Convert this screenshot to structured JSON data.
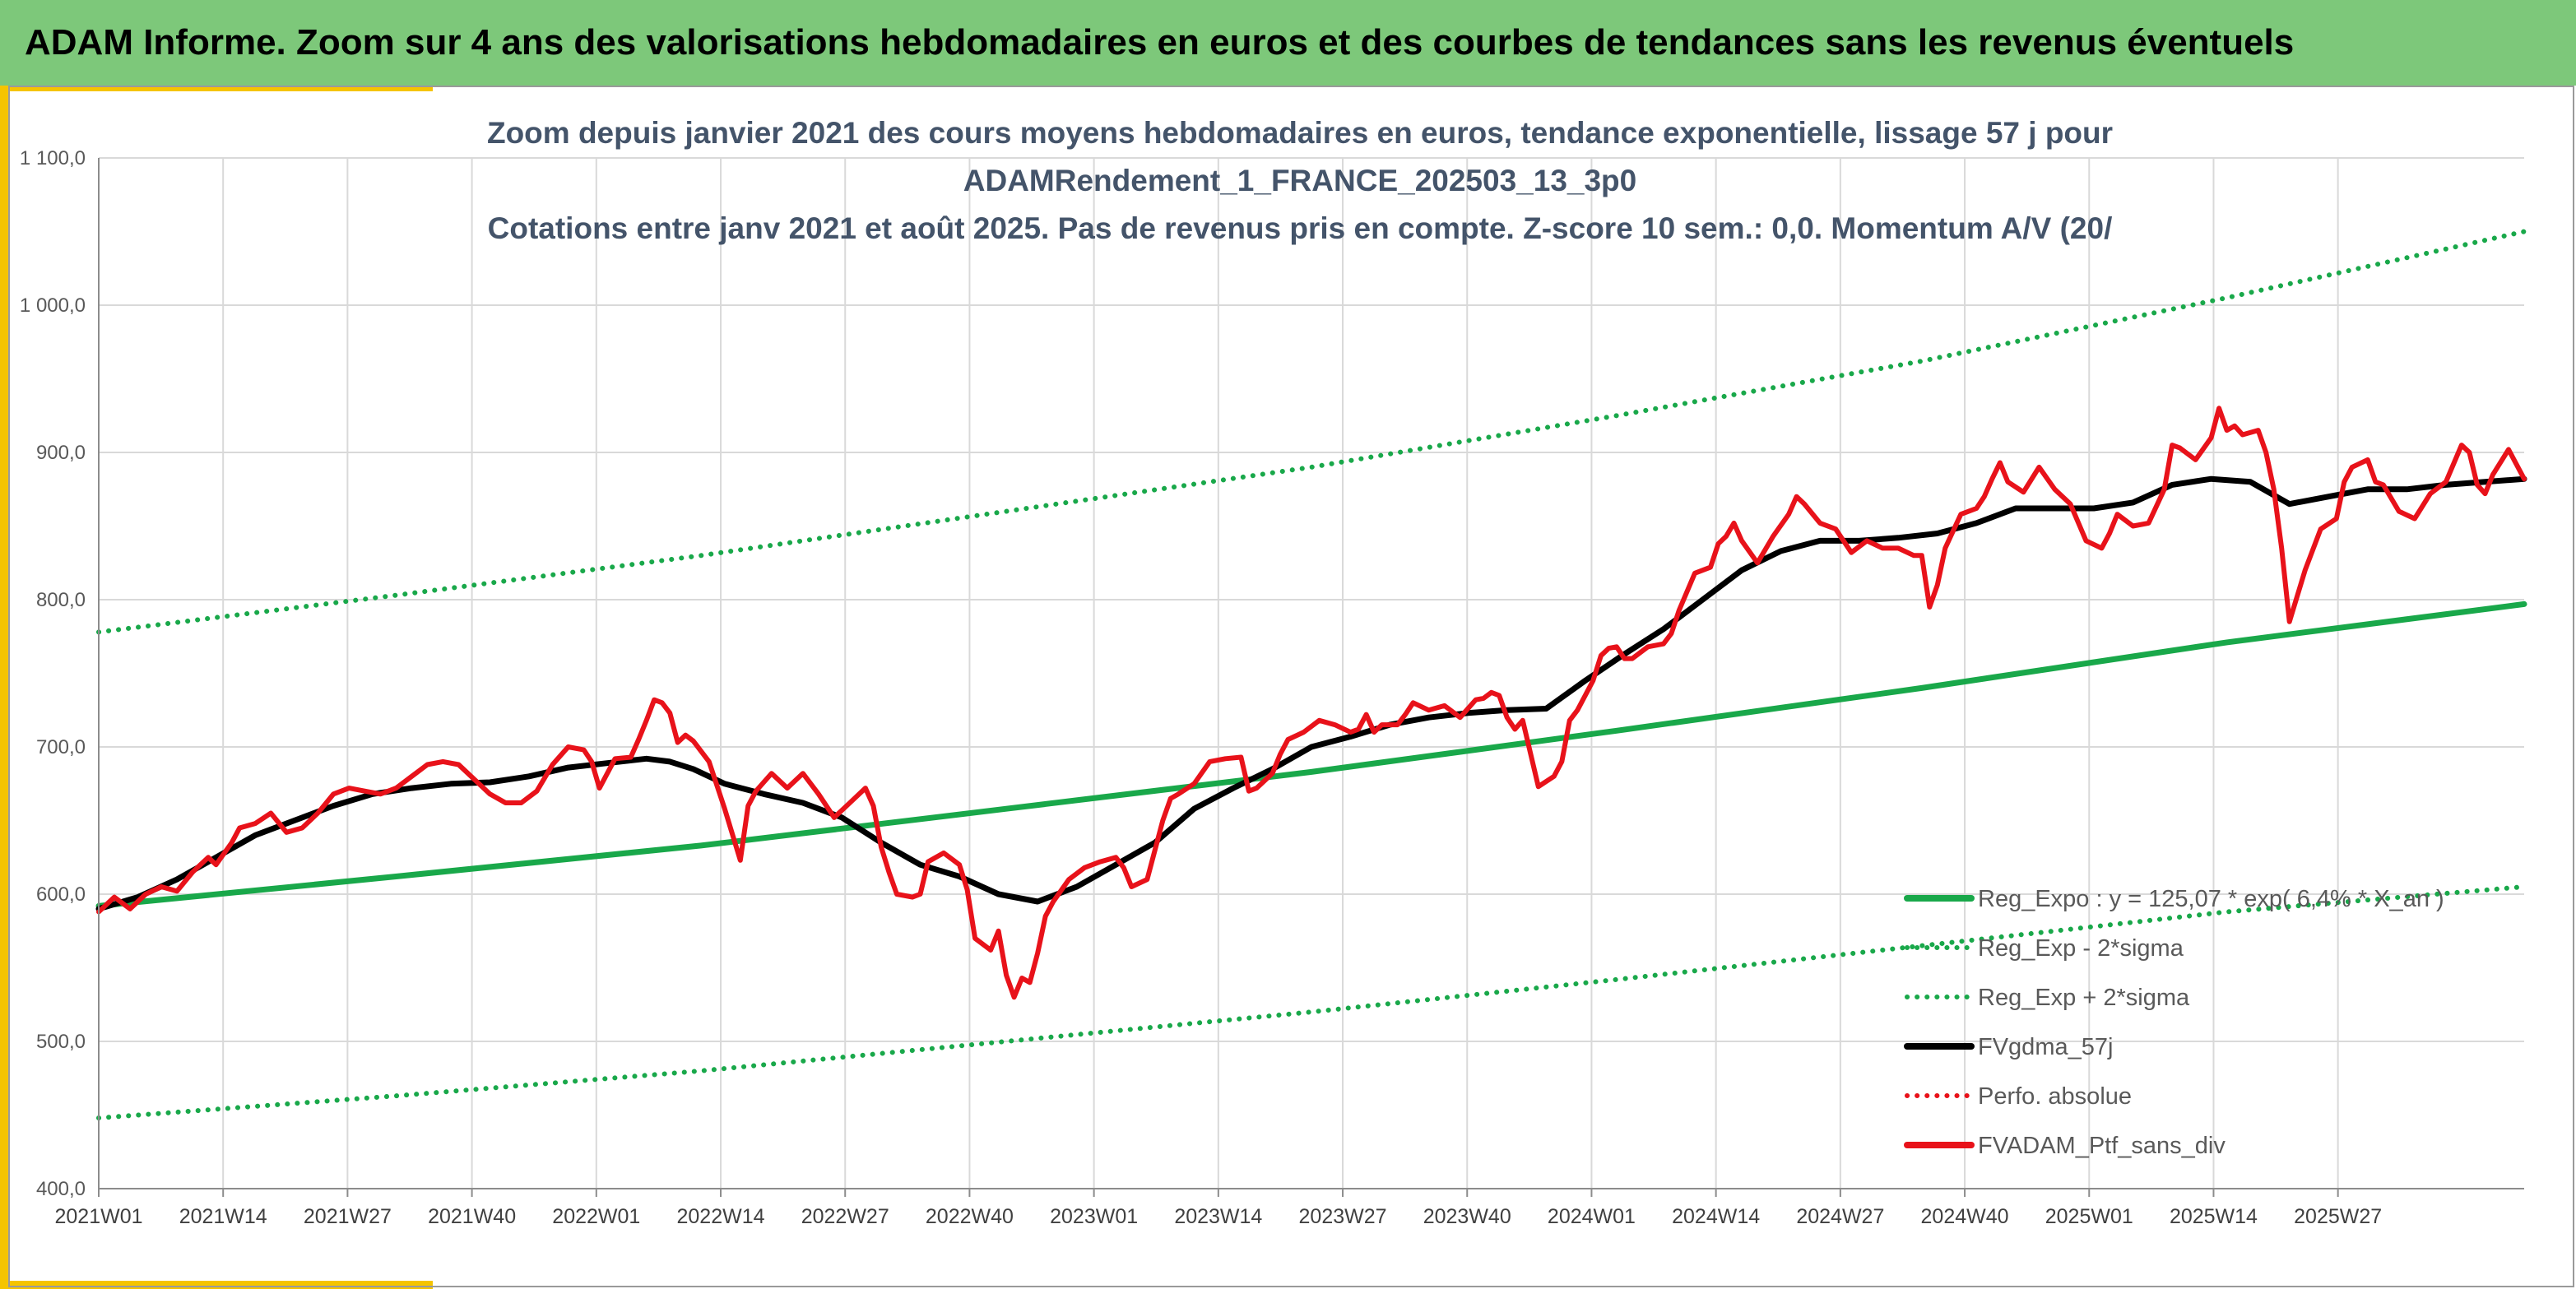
{
  "banner": {
    "title": "ADAM Informe. Zoom sur 4 ans des valorisations hebdomadaires en euros et des courbes de tendances sans les revenus éventuels",
    "color": "#7dc87a"
  },
  "chart_data": {
    "type": "line",
    "title_lines": [
      "Zoom depuis janvier 2021 des cours moyens hebdomadaires en euros, tendance exponentielle, lissage 57 j pour",
      "ADAMRendement_1_FRANCE_202503_13_3p0",
      "Cotations entre janv 2021 et août 2025. Pas de revenus pris en compte. Z-score 10 sem.: 0,0. Momentum A/V (20/"
    ],
    "xlabel": "",
    "ylabel": "",
    "ylim": [
      400,
      1100
    ],
    "yticks": [
      400,
      500,
      600,
      700,
      800,
      900,
      1000,
      1100
    ],
    "ytick_labels": [
      "400,0",
      "500,0",
      "600,0",
      "700,0",
      "800,0",
      "900,0",
      "1 000,0",
      "1 100,0"
    ],
    "xticks": [
      "2021W01",
      "2021W14",
      "2021W27",
      "2021W40",
      "2022W01",
      "2022W14",
      "2022W27",
      "2022W40",
      "2023W01",
      "2023W14",
      "2023W27",
      "2023W40",
      "2024W01",
      "2024W14",
      "2024W27",
      "2024W40",
      "2025W01",
      "2025W14",
      "2025W27"
    ],
    "grid": "horizontal and vertical",
    "legend_position": "bottom-right",
    "legend": [
      {
        "label": "Reg_Expo : y = 125,07 * exp( 6,4% * X_an )",
        "color": "#19a84a",
        "style": "solid"
      },
      {
        "label": "Reg_Exp - 2*sigma",
        "color": "#19a84a",
        "style": "dotted"
      },
      {
        "label": "Reg_Exp + 2*sigma",
        "color": "#19a84a",
        "style": "dotted"
      },
      {
        "label": "FVgdma_57j",
        "color": "#000000",
        "style": "solid"
      },
      {
        "label": "Perfo. absolue",
        "color": "#e8121a",
        "style": "dotted"
      },
      {
        "label": "FVADAM_Ptf_sans_div",
        "color": "#e8121a",
        "style": "solid"
      }
    ],
    "series": [
      {
        "name": "FVADAM_Ptf_sans_div",
        "color": "#e8121a",
        "points": [
          [
            0,
            588
          ],
          [
            2,
            598
          ],
          [
            4,
            590
          ],
          [
            6,
            600
          ],
          [
            8,
            605
          ],
          [
            10,
            602
          ],
          [
            12,
            615
          ],
          [
            14,
            625
          ],
          [
            15,
            620
          ],
          [
            17,
            635
          ],
          [
            18,
            645
          ],
          [
            20,
            648
          ],
          [
            22,
            655
          ],
          [
            24,
            642
          ],
          [
            26,
            645
          ],
          [
            28,
            655
          ],
          [
            30,
            668
          ],
          [
            32,
            672
          ],
          [
            34,
            670
          ],
          [
            36,
            668
          ],
          [
            38,
            672
          ],
          [
            40,
            680
          ],
          [
            42,
            688
          ],
          [
            44,
            690
          ],
          [
            46,
            688
          ],
          [
            48,
            678
          ],
          [
            50,
            668
          ],
          [
            52,
            662
          ],
          [
            54,
            662
          ],
          [
            56,
            670
          ],
          [
            58,
            688
          ],
          [
            60,
            700
          ],
          [
            62,
            698
          ],
          [
            63,
            690
          ],
          [
            64,
            672
          ],
          [
            66,
            692
          ],
          [
            68,
            693
          ],
          [
            69,
            705
          ],
          [
            70,
            718
          ],
          [
            71,
            732
          ],
          [
            72,
            730
          ],
          [
            73,
            723
          ],
          [
            74,
            703
          ],
          [
            75,
            708
          ],
          [
            76,
            704
          ],
          [
            78,
            690
          ],
          [
            80,
            658
          ],
          [
            82,
            623
          ],
          [
            83,
            660
          ],
          [
            84,
            670
          ],
          [
            86,
            682
          ],
          [
            88,
            672
          ],
          [
            90,
            682
          ],
          [
            92,
            668
          ],
          [
            94,
            652
          ],
          [
            96,
            662
          ],
          [
            98,
            672
          ],
          [
            99,
            660
          ],
          [
            100,
            632
          ],
          [
            101,
            615
          ],
          [
            102,
            600
          ],
          [
            104,
            598
          ],
          [
            105,
            600
          ],
          [
            106,
            622
          ],
          [
            108,
            628
          ],
          [
            110,
            620
          ],
          [
            111,
            603
          ],
          [
            112,
            570
          ],
          [
            114,
            562
          ],
          [
            115,
            575
          ],
          [
            116,
            545
          ],
          [
            117,
            530
          ],
          [
            118,
            543
          ],
          [
            119,
            540
          ],
          [
            120,
            560
          ],
          [
            121,
            585
          ],
          [
            122,
            595
          ],
          [
            124,
            610
          ],
          [
            126,
            618
          ],
          [
            128,
            622
          ],
          [
            130,
            625
          ],
          [
            131,
            618
          ],
          [
            132,
            605
          ],
          [
            134,
            610
          ],
          [
            135,
            630
          ],
          [
            136,
            650
          ],
          [
            137,
            665
          ],
          [
            138,
            668
          ],
          [
            140,
            675
          ],
          [
            142,
            690
          ],
          [
            144,
            692
          ],
          [
            146,
            693
          ],
          [
            147,
            670
          ],
          [
            148,
            672
          ],
          [
            150,
            682
          ],
          [
            151,
            695
          ],
          [
            152,
            705
          ],
          [
            154,
            710
          ],
          [
            156,
            718
          ],
          [
            158,
            715
          ],
          [
            160,
            710
          ],
          [
            161,
            712
          ],
          [
            162,
            722
          ],
          [
            163,
            710
          ],
          [
            164,
            715
          ],
          [
            166,
            715
          ],
          [
            167,
            722
          ],
          [
            168,
            730
          ],
          [
            170,
            725
          ],
          [
            172,
            728
          ],
          [
            174,
            720
          ],
          [
            176,
            732
          ],
          [
            177,
            733
          ],
          [
            178,
            737
          ],
          [
            179,
            735
          ],
          [
            180,
            720
          ],
          [
            181,
            712
          ],
          [
            182,
            718
          ],
          [
            184,
            673
          ],
          [
            186,
            680
          ],
          [
            187,
            690
          ],
          [
            188,
            718
          ],
          [
            189,
            725
          ],
          [
            190,
            735
          ],
          [
            191,
            745
          ],
          [
            192,
            762
          ],
          [
            193,
            767
          ],
          [
            194,
            768
          ],
          [
            195,
            760
          ],
          [
            196,
            760
          ],
          [
            198,
            768
          ],
          [
            200,
            770
          ],
          [
            201,
            777
          ],
          [
            202,
            793
          ],
          [
            204,
            818
          ],
          [
            206,
            822
          ],
          [
            207,
            838
          ],
          [
            208,
            843
          ],
          [
            209,
            852
          ],
          [
            210,
            840
          ],
          [
            212,
            825
          ],
          [
            214,
            843
          ],
          [
            216,
            858
          ],
          [
            217,
            870
          ],
          [
            218,
            865
          ],
          [
            220,
            852
          ],
          [
            222,
            848
          ],
          [
            224,
            832
          ],
          [
            226,
            840
          ],
          [
            228,
            835
          ],
          [
            230,
            835
          ],
          [
            232,
            830
          ],
          [
            233,
            830
          ],
          [
            234,
            795
          ],
          [
            235,
            810
          ],
          [
            236,
            835
          ],
          [
            238,
            858
          ],
          [
            240,
            862
          ],
          [
            241,
            870
          ],
          [
            242,
            882
          ],
          [
            243,
            893
          ],
          [
            244,
            880
          ],
          [
            246,
            873
          ],
          [
            248,
            890
          ],
          [
            250,
            875
          ],
          [
            252,
            865
          ],
          [
            254,
            840
          ],
          [
            256,
            835
          ],
          [
            257,
            845
          ],
          [
            258,
            858
          ],
          [
            260,
            850
          ],
          [
            262,
            852
          ],
          [
            264,
            875
          ],
          [
            265,
            905
          ],
          [
            266,
            903
          ],
          [
            268,
            895
          ],
          [
            270,
            910
          ],
          [
            271,
            930
          ],
          [
            272,
            915
          ],
          [
            273,
            918
          ],
          [
            274,
            912
          ],
          [
            276,
            915
          ],
          [
            277,
            900
          ],
          [
            278,
            875
          ],
          [
            279,
            835
          ],
          [
            280,
            785
          ],
          [
            282,
            820
          ],
          [
            284,
            848
          ],
          [
            286,
            855
          ],
          [
            287,
            880
          ],
          [
            288,
            890
          ],
          [
            290,
            895
          ],
          [
            291,
            880
          ],
          [
            292,
            878
          ],
          [
            294,
            860
          ],
          [
            296,
            855
          ],
          [
            298,
            872
          ],
          [
            300,
            880
          ],
          [
            302,
            905
          ],
          [
            303,
            900
          ],
          [
            304,
            878
          ],
          [
            305,
            872
          ],
          [
            306,
            885
          ],
          [
            308,
            902
          ],
          [
            310,
            882
          ]
        ]
      },
      {
        "name": "FVgdma_57j",
        "color": "#000000",
        "points": [
          [
            0,
            590
          ],
          [
            5,
            598
          ],
          [
            10,
            610
          ],
          [
            15,
            625
          ],
          [
            20,
            640
          ],
          [
            25,
            650
          ],
          [
            30,
            660
          ],
          [
            35,
            668
          ],
          [
            40,
            672
          ],
          [
            45,
            675
          ],
          [
            50,
            676
          ],
          [
            55,
            680
          ],
          [
            60,
            686
          ],
          [
            65,
            689
          ],
          [
            70,
            692
          ],
          [
            73,
            690
          ],
          [
            76,
            685
          ],
          [
            80,
            675
          ],
          [
            85,
            668
          ],
          [
            90,
            662
          ],
          [
            95,
            652
          ],
          [
            100,
            635
          ],
          [
            105,
            620
          ],
          [
            110,
            612
          ],
          [
            115,
            600
          ],
          [
            120,
            595
          ],
          [
            125,
            605
          ],
          [
            130,
            620
          ],
          [
            135,
            635
          ],
          [
            140,
            658
          ],
          [
            145,
            672
          ],
          [
            150,
            685
          ],
          [
            155,
            700
          ],
          [
            160,
            707
          ],
          [
            165,
            715
          ],
          [
            170,
            720
          ],
          [
            175,
            723
          ],
          [
            180,
            725
          ],
          [
            185,
            726
          ],
          [
            190,
            745
          ],
          [
            195,
            763
          ],
          [
            200,
            780
          ],
          [
            205,
            800
          ],
          [
            210,
            820
          ],
          [
            215,
            833
          ],
          [
            220,
            840
          ],
          [
            225,
            840
          ],
          [
            230,
            842
          ],
          [
            235,
            845
          ],
          [
            240,
            852
          ],
          [
            245,
            862
          ],
          [
            250,
            862
          ],
          [
            255,
            862
          ],
          [
            260,
            866
          ],
          [
            265,
            878
          ],
          [
            270,
            882
          ],
          [
            275,
            880
          ],
          [
            280,
            865
          ],
          [
            285,
            870
          ],
          [
            290,
            875
          ],
          [
            295,
            875
          ],
          [
            300,
            878
          ],
          [
            305,
            880
          ],
          [
            310,
            882
          ]
        ]
      },
      {
        "name": "Reg_Expo : y = 125,07 * exp( 6,4% * X_an )",
        "color": "#19a84a",
        "points": [
          [
            0,
            592
          ],
          [
            38,
            612
          ],
          [
            77,
            633
          ],
          [
            116,
            658
          ],
          [
            155,
            683
          ],
          [
            194,
            711
          ],
          [
            233,
            740
          ],
          [
            272,
            771
          ],
          [
            310,
            797
          ]
        ]
      },
      {
        "name": "Reg_Exp + 2*sigma",
        "color": "#19a84a",
        "points": [
          [
            0,
            778
          ],
          [
            38,
            803
          ],
          [
            77,
            830
          ],
          [
            116,
            860
          ],
          [
            155,
            890
          ],
          [
            194,
            925
          ],
          [
            233,
            962
          ],
          [
            272,
            1005
          ],
          [
            310,
            1050
          ]
        ]
      },
      {
        "name": "Reg_Exp - 2*sigma",
        "color": "#19a84a",
        "points": [
          [
            0,
            448
          ],
          [
            38,
            463
          ],
          [
            77,
            480
          ],
          [
            116,
            500
          ],
          [
            155,
            520
          ],
          [
            194,
            542
          ],
          [
            233,
            565
          ],
          [
            272,
            588
          ],
          [
            310,
            605
          ]
        ]
      }
    ]
  }
}
